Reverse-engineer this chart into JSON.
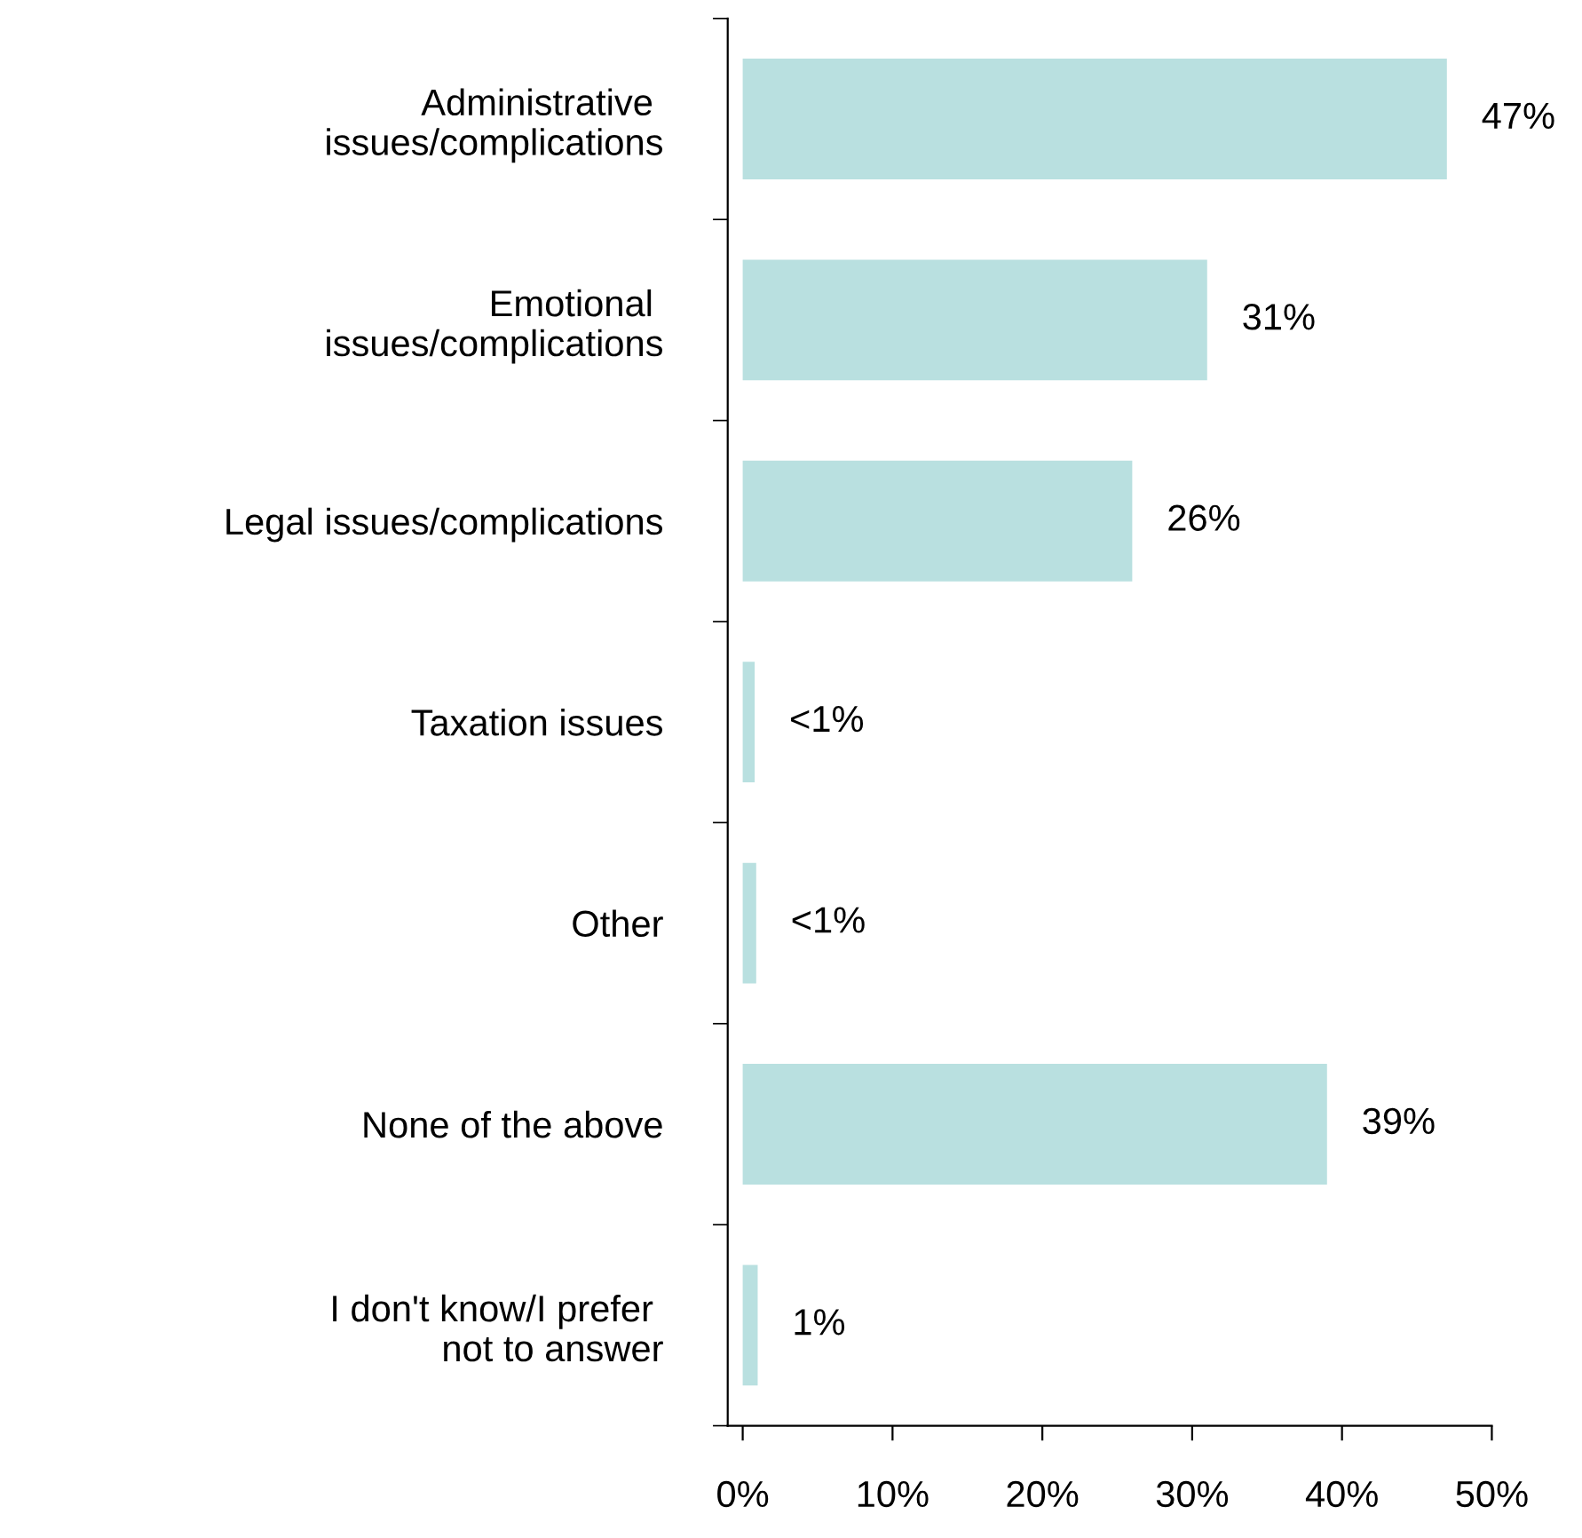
{
  "chart_data": {
    "type": "bar",
    "orientation": "horizontal",
    "categories": [
      "Administrative \nissues/complications",
      "Emotional \nissues/complications",
      "Legal issues/complications",
      "Taxation issues",
      "Other",
      "None of the above",
      "I don't know/I prefer \nnot to answer"
    ],
    "values": [
      47,
      31,
      26,
      0.8,
      0.9,
      39,
      1
    ],
    "value_labels": [
      "47%",
      "31%",
      "26%",
      "<1%",
      "<1%",
      "39%",
      "1%"
    ],
    "color": "#b9e0e0",
    "xlim": [
      -1,
      50
    ],
    "xticks": [
      {
        "value": 0,
        "label": "0%"
      },
      {
        "value": 10,
        "label": "10%"
      },
      {
        "value": 20,
        "label": "20%"
      },
      {
        "value": 30,
        "label": "30%"
      },
      {
        "value": 40,
        "label": "40%"
      },
      {
        "value": 50,
        "label": "50%"
      }
    ],
    "grid": false
  }
}
